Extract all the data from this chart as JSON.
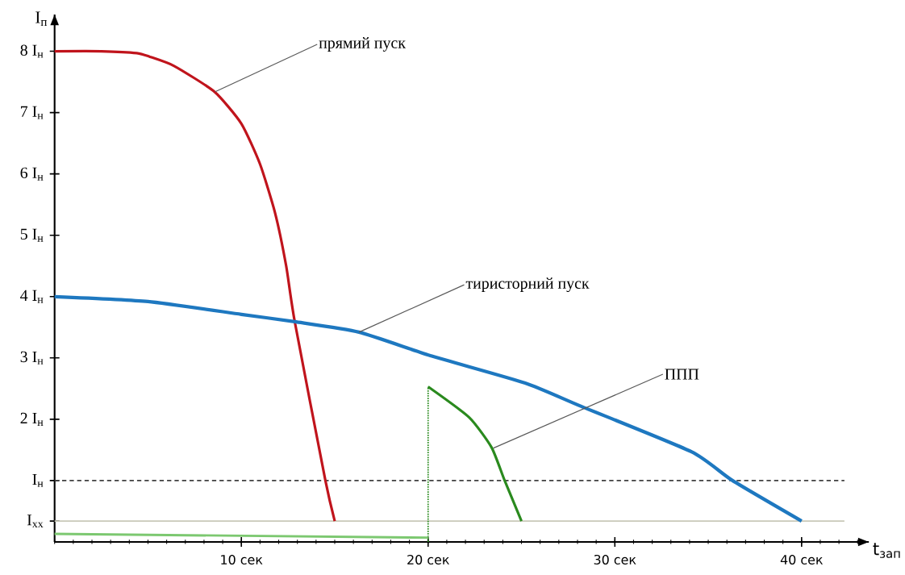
{
  "chart_data": {
    "type": "line",
    "xlabel": "t$_{зап}$",
    "ylabel": "I$_{п}$",
    "xlim": [
      0,
      43.6
    ],
    "ylim": [
      0,
      8.6
    ],
    "xticks": [
      {
        "value": 10,
        "label": "10 сек"
      },
      {
        "value": 20,
        "label": "20 сек"
      },
      {
        "value": 30,
        "label": "30 сек"
      },
      {
        "value": 40,
        "label": "40 сек"
      }
    ],
    "yticks": [
      {
        "value": 0.34,
        "label": "I$_{хх}$"
      },
      {
        "value": 1,
        "label": "I$_{н}$"
      },
      {
        "value": 2,
        "label": "2 I$_{н}$"
      },
      {
        "value": 3,
        "label": "3 I$_{н}$"
      },
      {
        "value": 4,
        "label": "4 I$_{н}$"
      },
      {
        "value": 5,
        "label": "5 I$_{н}$"
      },
      {
        "value": 6,
        "label": "6 I$_{н}$"
      },
      {
        "value": 7,
        "label": "7 I$_{н}$"
      },
      {
        "value": 8,
        "label": "8 I$_{н}$"
      }
    ],
    "series": [
      {
        "color": "#c0141c",
        "x": [
          0,
          2.5,
          4.4,
          5.1,
          6.4,
          8.56,
          10,
          11,
          11.8,
          12.4,
          12.86,
          14.5,
          15
        ],
        "values": [
          8,
          8,
          7.97,
          7.91,
          7.76,
          7.34,
          6.82,
          6.16,
          5.37,
          4.5,
          3.59,
          1.0,
          0.34
        ]
      },
      {
        "color": "#1e78c0",
        "x": [
          0,
          5,
          10,
          12.86,
          16.3,
          20.2,
          25.2,
          28.2,
          34.1,
          36.3,
          40
        ],
        "values": [
          4,
          3.92,
          3.71,
          3.59,
          3.42,
          3.03,
          2.59,
          2.21,
          1.47,
          1.0,
          0.34
        ]
      },
      {
        "color": "#2a8a1e",
        "x": [
          20,
          22.2,
          23.4,
          24.1,
          25
        ],
        "values": [
          2.53,
          2.03,
          1.54,
          1.0,
          0.34
        ]
      },
      {
        "color": "#2a8a1e",
        "line_style": "dotted",
        "x": [
          20,
          20
        ],
        "values": [
          0,
          2.53
        ]
      },
      {
        "color": "#7cc870",
        "x": [
          0,
          20
        ],
        "values": [
          0.13,
          0.07
        ]
      }
    ],
    "ref_lines": [
      {
        "axis": "y",
        "value": 0.34,
        "color": "#c8c8b8"
      },
      {
        "axis": "y",
        "value": 1,
        "color": "#404040",
        "line_style": "dashed"
      }
    ],
    "annotations": [
      {
        "text": "прямий пуск",
        "x": 8.6,
        "y": 7.34
      },
      {
        "text": "тиристорний пуск",
        "x": 16.3,
        "y": 3.42
      },
      {
        "text": "ППП",
        "x": 23.5,
        "y": 1.53
      }
    ],
    "line_style": "solid",
    "marker": "none"
  }
}
